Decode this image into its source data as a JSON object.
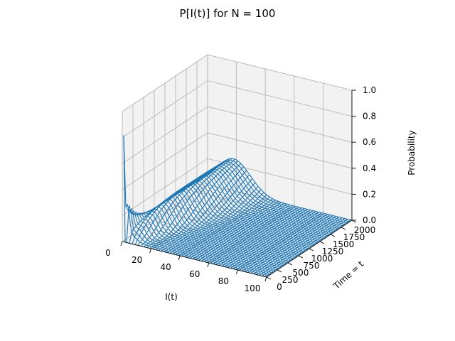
{
  "chart_data": {
    "type": "surface3d-wireframe",
    "title": "P[I(t)] for N = 100",
    "xlabel": "I(t)",
    "ylabel": "Time = t",
    "zlabel": "Probability",
    "x_ticks": [
      0,
      20,
      40,
      60,
      80,
      100
    ],
    "y_ticks": [
      0,
      250,
      500,
      750,
      1000,
      1250,
      1500,
      1750,
      2000
    ],
    "z_ticks": [
      "0.0",
      "0.2",
      "0.4",
      "0.6",
      "0.8",
      "1.0"
    ],
    "xlim": [
      0,
      100
    ],
    "ylim": [
      0,
      2000
    ],
    "zlim": [
      0,
      1
    ],
    "grid": true,
    "line_color": "#1f77b4",
    "pane_color": "#f2f2f2",
    "grid_color": "#b0b0b0",
    "n_time_slices": 40,
    "peak_probability_at_t0": 0.82,
    "max_ridge_probability": 0.28
  }
}
